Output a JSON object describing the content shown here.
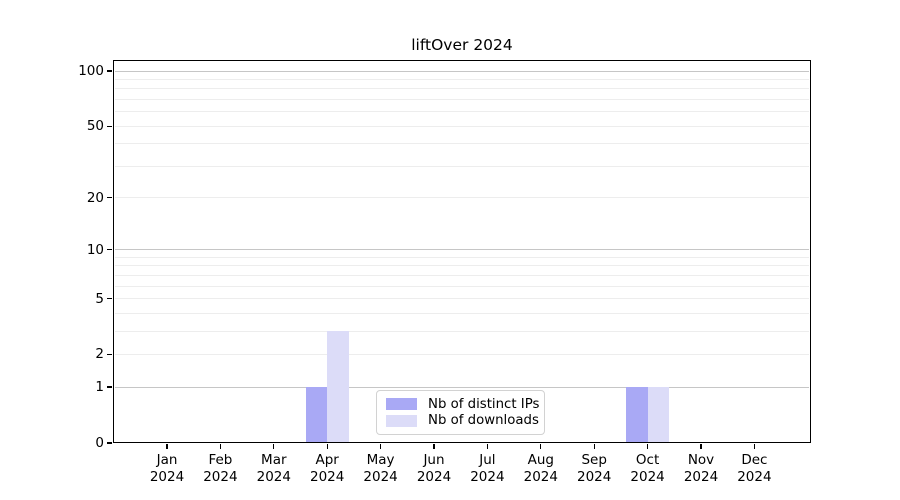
{
  "chart_data": {
    "type": "bar",
    "title": "liftOver 2024",
    "categories": [
      "Jan",
      "Feb",
      "Mar",
      "Apr",
      "May",
      "Jun",
      "Jul",
      "Aug",
      "Sep",
      "Oct",
      "Nov",
      "Dec"
    ],
    "year_label": "2024",
    "series": [
      {
        "name": "Nb of distinct IPs",
        "color": "#a9a9f5",
        "values": [
          0,
          0,
          0,
          1,
          0,
          0,
          0,
          0,
          0,
          1,
          0,
          0
        ]
      },
      {
        "name": "Nb of downloads",
        "color": "#dcdcf8",
        "values": [
          0,
          0,
          0,
          3,
          0,
          0,
          0,
          0,
          0,
          1,
          0,
          0
        ]
      }
    ],
    "xlabel": "",
    "ylabel": "",
    "y_axis": {
      "scale": "log1p",
      "ticks": [
        0,
        1,
        2,
        5,
        10,
        20,
        50,
        100
      ],
      "major_gridlines": [
        1,
        10,
        100
      ],
      "minor_gridlines": [
        2,
        3,
        4,
        5,
        6,
        7,
        8,
        9,
        20,
        30,
        40,
        50,
        60,
        70,
        80,
        90
      ],
      "min": 0,
      "max": 115
    },
    "grid": "on",
    "legend_position": "lower-center-inside"
  },
  "colors": {
    "major_grid": "#c6c6c6",
    "minor_grid": "#ededed",
    "axis": "#000000",
    "legend_border": "#d2d2d2",
    "background": "#ffffff"
  }
}
